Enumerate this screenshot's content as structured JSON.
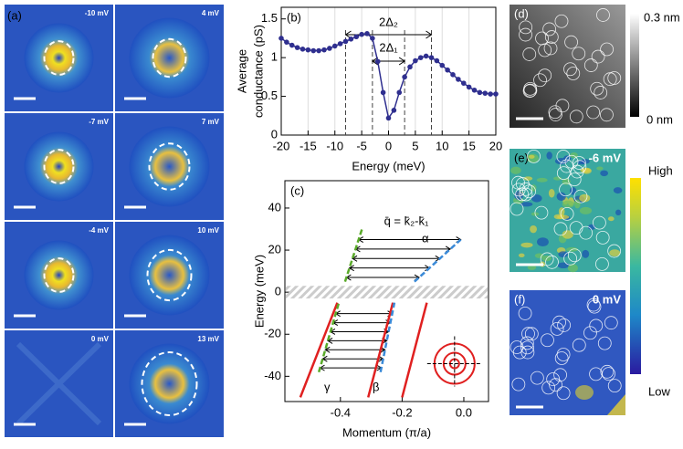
{
  "panels": {
    "a": {
      "label": "(a)",
      "images": [
        "-10 mV",
        "4 mV",
        "-7 mV",
        "7 mV",
        "-4 mV",
        "10 mV",
        "0 mV",
        "13 mV"
      ]
    },
    "d": {
      "label": "(d)",
      "cbar_top": "0.3 nm",
      "cbar_bottom": "0 nm"
    },
    "e": {
      "label": "(e)",
      "bias": "-6 mV",
      "cbar_top": "High",
      "cbar_bottom": "Low"
    },
    "f": {
      "label": "(f)",
      "bias": "0 mV"
    }
  },
  "chart_data": [
    {
      "type": "line",
      "label": "(b)",
      "xlabel": "Energy (meV)",
      "ylabel": [
        "Average",
        "conductance (pS)"
      ],
      "x": [
        -20,
        -19,
        -18,
        -17,
        -16,
        -15,
        -14,
        -13,
        -12,
        -11,
        -10,
        -9,
        -8,
        -7,
        -6,
        -5,
        -4,
        -3,
        -2,
        -1,
        0,
        1,
        2,
        3,
        4,
        5,
        6,
        7,
        8,
        9,
        10,
        11,
        12,
        13,
        14,
        15,
        16,
        17,
        18,
        19,
        20
      ],
      "series": [
        {
          "name": "Average conductance",
          "color": "#2f2f8f",
          "values": [
            1.25,
            1.2,
            1.16,
            1.13,
            1.11,
            1.1,
            1.09,
            1.09,
            1.1,
            1.12,
            1.15,
            1.18,
            1.21,
            1.24,
            1.27,
            1.3,
            1.31,
            1.25,
            0.95,
            0.55,
            0.22,
            0.32,
            0.55,
            0.75,
            0.88,
            0.96,
            1.0,
            1.02,
            1.0,
            0.96,
            0.9,
            0.84,
            0.78,
            0.72,
            0.67,
            0.62,
            0.58,
            0.55,
            0.54,
            0.53,
            0.53
          ]
        }
      ],
      "dashed_x": [
        -8,
        -3,
        3,
        8
      ],
      "annotations": [
        "2Δ₂",
        "2Δ₁"
      ],
      "xlim": [
        -20,
        20
      ],
      "xticks": [
        -20,
        -15,
        -10,
        -5,
        0,
        5,
        10,
        15,
        20
      ],
      "ylim": [
        0,
        1.65
      ],
      "yticks": [
        0,
        0.5,
        1,
        1.5
      ],
      "grid": true
    },
    {
      "type": "line",
      "label": "(c)",
      "xlabel": "Momentum (π/a)",
      "ylabel": "Energy (meV)",
      "annotation": "q̄ = k̄₂-k̄₁",
      "band_labels": [
        "γ",
        "β",
        "α"
      ],
      "series": [
        {
          "name": "γ",
          "color": "#e02020",
          "x": [
            -0.53,
            -0.41
          ],
          "values": [
            -50,
            -5
          ]
        },
        {
          "name": "β",
          "color": "#e02020",
          "x": [
            -0.31,
            -0.23
          ],
          "values": [
            -50,
            -5
          ]
        },
        {
          "name": "α",
          "color": "#e02020",
          "x": [
            -0.2,
            -0.12
          ],
          "values": [
            -50,
            -5
          ]
        },
        {
          "name": "γ fit",
          "color": "#5aaa2a",
          "dashed": true,
          "x": [
            -0.47,
            -0.405,
            null,
            -0.385,
            -0.33
          ],
          "values": [
            -38,
            -5,
            null,
            5,
            30
          ]
        },
        {
          "name": "β fit",
          "color": "#3a8ad8",
          "dashed": true,
          "x": [
            -0.27,
            -0.225,
            null,
            -0.16,
            -0.01
          ],
          "values": [
            -38,
            -5,
            null,
            5,
            25
          ]
        }
      ],
      "xlim": [
        -0.58,
        0.08
      ],
      "xticks": [
        -0.4,
        -0.2,
        {
          "value": 0,
          "label": "0.0"
        }
      ],
      "ylim": [
        -52,
        53
      ],
      "yticks": [
        -40,
        -20,
        0,
        20,
        40
      ]
    }
  ]
}
